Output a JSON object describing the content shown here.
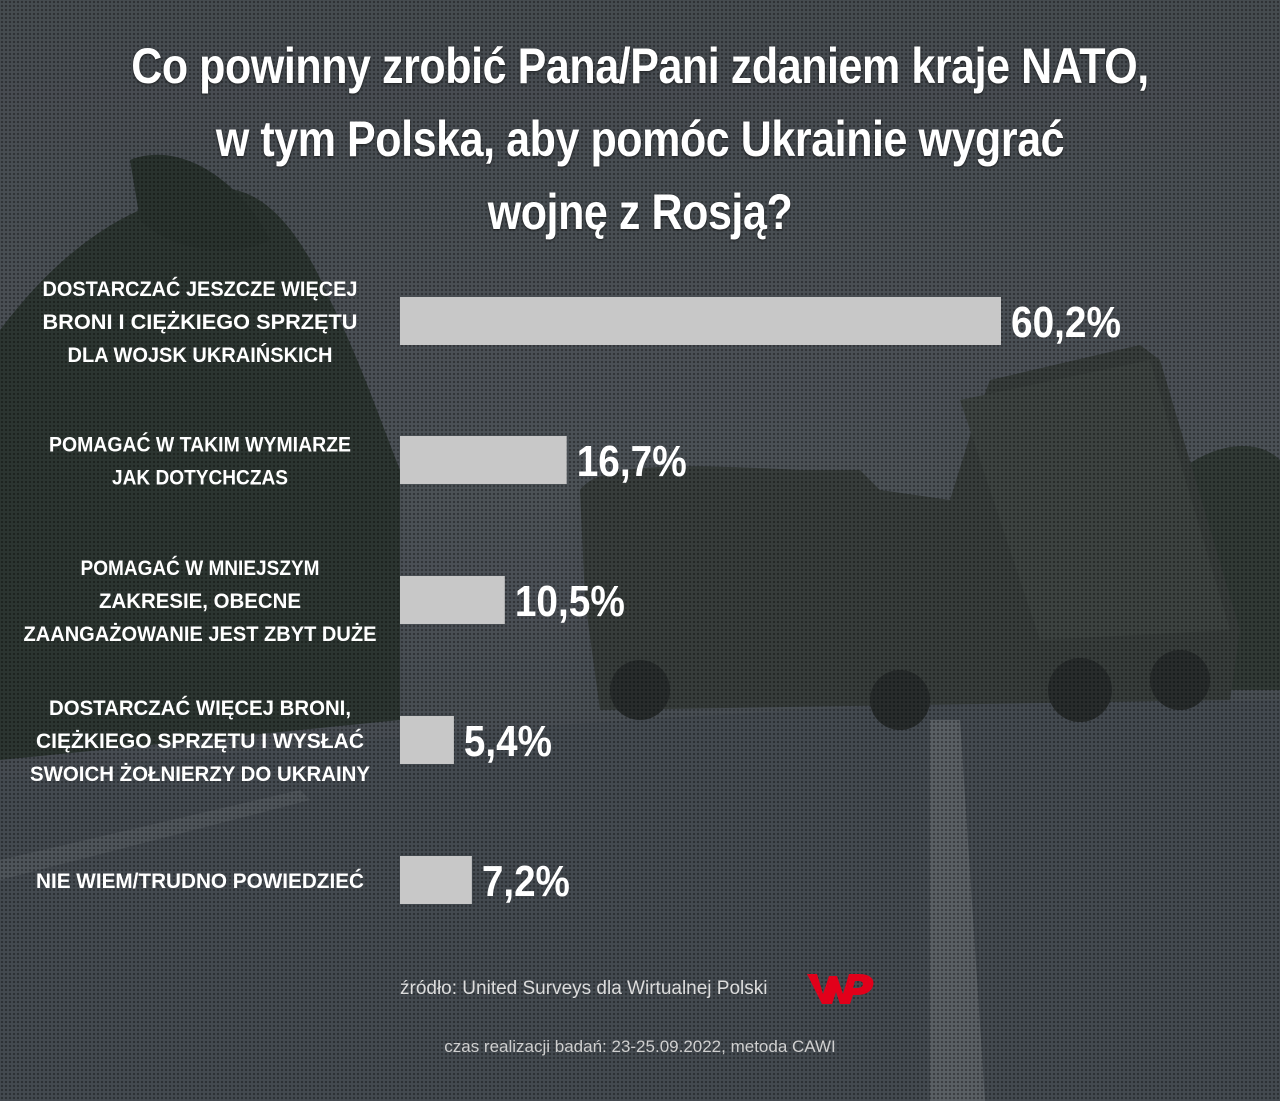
{
  "title_lines": [
    "Co powinny zrobić Pana/Pani zdaniem kraje NATO,",
    "w tym Polska, aby pomóc Ukrainie wygrać",
    "wojnę z Rosją?"
  ],
  "source": "źródło: United Surveys dla Wirtualnej Polski",
  "logo": "WP",
  "meta": "czas realizacji badań: 23-25.09.2022, metoda CAWI",
  "colors": {
    "bar": "#c8c8c8",
    "text": "#ffffff",
    "logo": "#e2001a"
  },
  "chart_data": {
    "type": "bar",
    "orientation": "horizontal",
    "title": "Co powinny zrobić Pana/Pani zdaniem kraje NATO, w tym Polska, aby pomóc Ukrainie wygrać wojnę z Rosją?",
    "xlim": [
      0,
      60.2
    ],
    "categories": [
      [
        "DOSTARCZAĆ JESZCZE WIĘCEJ",
        "BRONI I CIĘŻKIEGO SPRZĘTU",
        "DLA WOJSK UKRAIŃSKICH"
      ],
      [
        "POMAGAĆ W TAKIM WYMIARZE",
        "JAK DOTYCHCZAS"
      ],
      [
        "POMAGAĆ W MNIEJSZYM",
        "ZAKRESIE, OBECNE",
        "ZAANGAŻOWANIE JEST ZBYT DUŻE"
      ],
      [
        "DOSTARCZAĆ WIĘCEJ BRONI,",
        "CIĘŻKIEGO SPRZĘTU I WYSŁAĆ",
        "SWOICH ŻOŁNIERZY DO UKRAINY"
      ],
      [
        "NIE WIEM/TRUDNO POWIEDZIEĆ"
      ]
    ],
    "values": [
      60.2,
      16.7,
      10.5,
      5.4,
      7.2
    ],
    "value_labels": [
      "60,2%",
      "16,7%",
      "10,5%",
      "5,4%",
      "7,2%"
    ],
    "grid": false,
    "legend": "none"
  }
}
